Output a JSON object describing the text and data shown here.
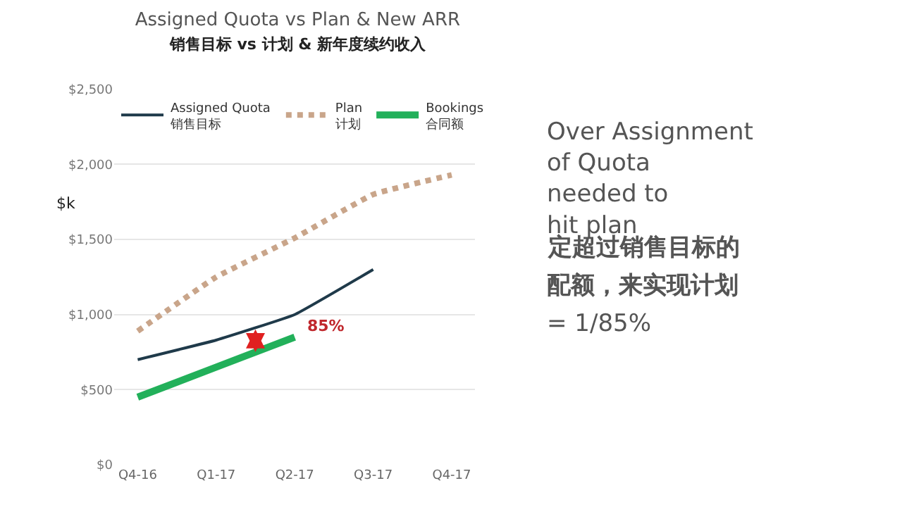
{
  "chart_data": {
    "type": "line",
    "title": "Assigned Quota vs Plan & New ARR",
    "subtitle": "销售目标 vs 计划 & 新年度续约收入",
    "ylabel": "$k",
    "categories": [
      "Q4-16",
      "Q1-17",
      "Q2-17",
      "Q3-17",
      "Q4-17"
    ],
    "ylim": [
      0,
      2500
    ],
    "yticks": [
      {
        "value": 0,
        "label": "$0"
      },
      {
        "value": 500,
        "label": "$500"
      },
      {
        "value": 1000,
        "label": "$1,000"
      },
      {
        "value": 1500,
        "label": "$1,500"
      },
      {
        "value": 2000,
        "label": "$2,000"
      },
      {
        "value": 2500,
        "label": "$2,500"
      }
    ],
    "grid": "y",
    "legend": "top",
    "series": [
      {
        "name": "Assigned Quota\n销售目标",
        "color": "#1f3a4a",
        "values": [
          700,
          830,
          1000,
          1300,
          null
        ],
        "line_style": "solid"
      },
      {
        "name": "Plan\n计划",
        "color": "#c9a58a",
        "values": [
          890,
          1250,
          1510,
          1800,
          1930
        ],
        "line_style": "dotted"
      },
      {
        "name": "Bookings\n合同额",
        "color": "#22b05a",
        "values": [
          450,
          650,
          850,
          null,
          null
        ],
        "line_style": "solid"
      }
    ],
    "annotations": [
      "85%",
      "Over Assignment\nof Quota\nneeded to\nhit plan",
      "定超过销售目标的",
      "配额，来实现计划",
      "= 1/85%"
    ]
  }
}
